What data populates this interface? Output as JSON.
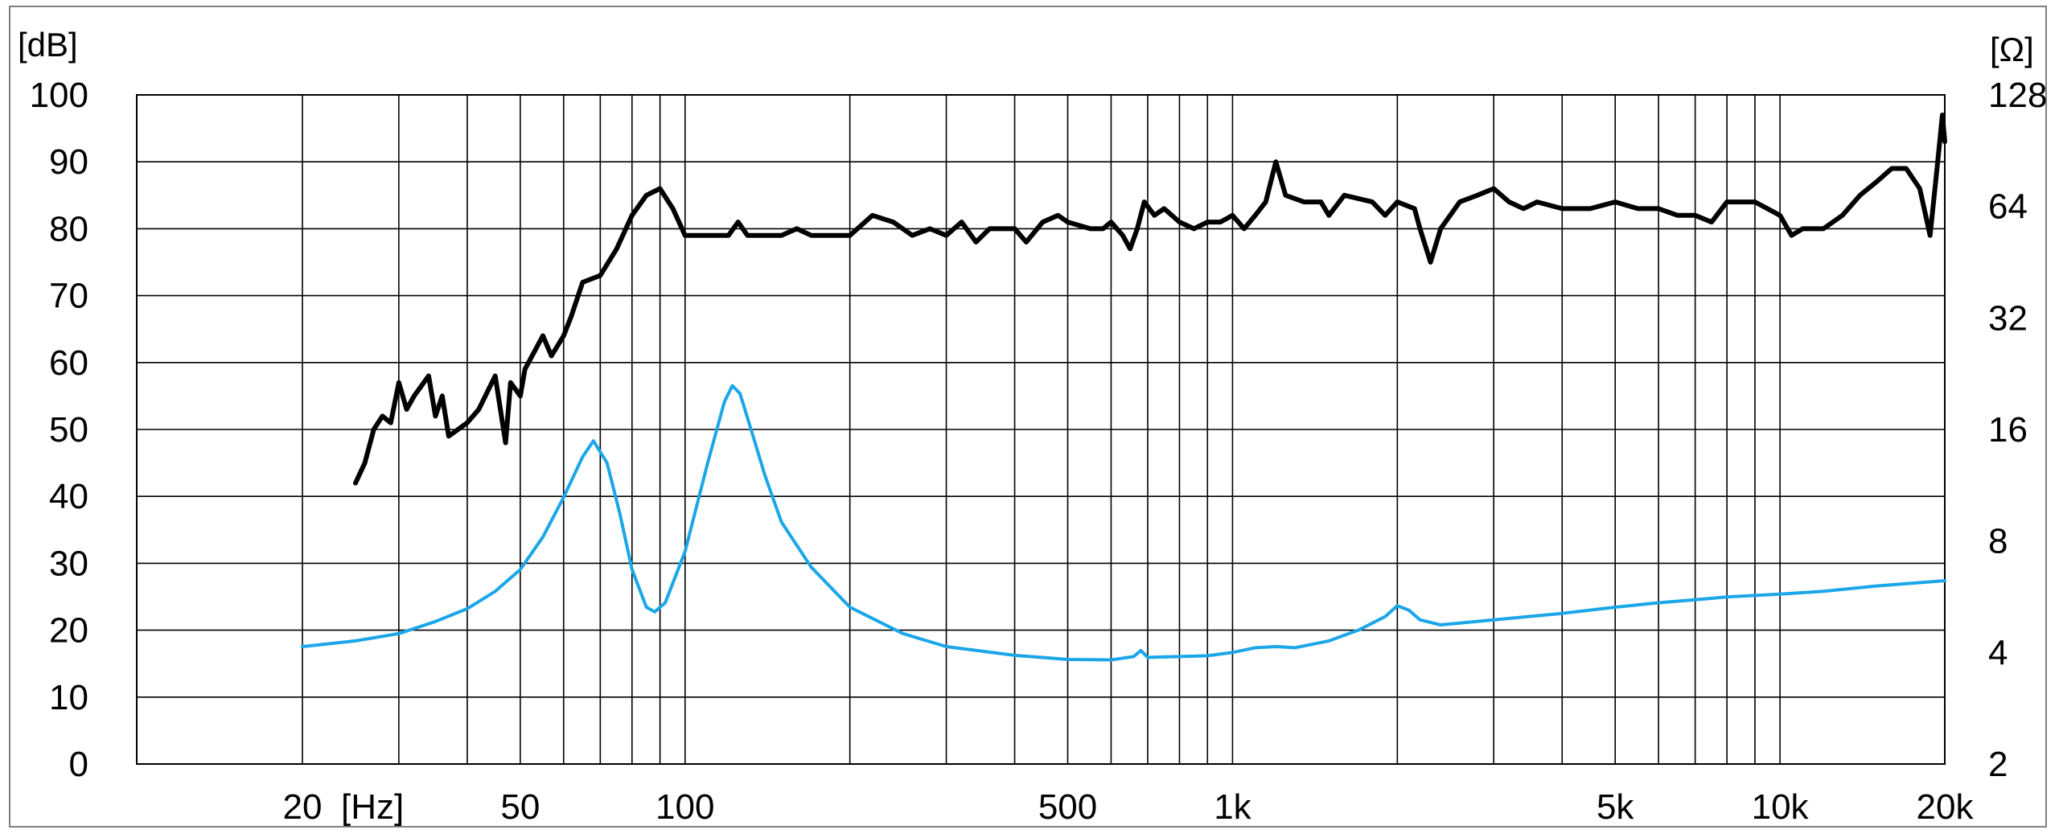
{
  "chart_data": {
    "type": "line",
    "title": "",
    "x_scale": "log",
    "x_unit": "[Hz]",
    "xlim": [
      10,
      20000
    ],
    "x_ticks": [
      {
        "value": 20,
        "label": "20"
      },
      {
        "value": 50,
        "label": "50"
      },
      {
        "value": 100,
        "label": "100"
      },
      {
        "value": 500,
        "label": "500"
      },
      {
        "value": 1000,
        "label": "1k"
      },
      {
        "value": 5000,
        "label": "5k"
      },
      {
        "value": 10000,
        "label": "10k"
      },
      {
        "value": 20000,
        "label": "20k"
      }
    ],
    "x_gridlines": [
      20,
      30,
      40,
      50,
      60,
      70,
      80,
      90,
      100,
      200,
      300,
      400,
      500,
      600,
      700,
      800,
      900,
      1000,
      2000,
      3000,
      4000,
      5000,
      6000,
      7000,
      8000,
      9000,
      10000,
      20000
    ],
    "y_left": {
      "unit": "[dB]",
      "range": [
        0,
        100
      ],
      "ticks": [
        0,
        10,
        20,
        30,
        40,
        50,
        60,
        70,
        80,
        90,
        100
      ]
    },
    "y_right": {
      "unit": "[Ω]",
      "scale": "log2",
      "range": [
        2,
        128
      ],
      "ticks": [
        2,
        4,
        8,
        16,
        32,
        64,
        128
      ]
    },
    "grid": true,
    "legend": "none",
    "series": [
      {
        "axis": "left",
        "color": "#000000",
        "points": [
          [
            25,
            42
          ],
          [
            26,
            45
          ],
          [
            27,
            50
          ],
          [
            28,
            52
          ],
          [
            29,
            51
          ],
          [
            30,
            57
          ],
          [
            31,
            53
          ],
          [
            32,
            55
          ],
          [
            34,
            58
          ],
          [
            35,
            52
          ],
          [
            36,
            55
          ],
          [
            37,
            49
          ],
          [
            40,
            51
          ],
          [
            42,
            53
          ],
          [
            45,
            58
          ],
          [
            47,
            48
          ],
          [
            48,
            57
          ],
          [
            50,
            55
          ],
          [
            51,
            59
          ],
          [
            55,
            64
          ],
          [
            57,
            61
          ],
          [
            60,
            64
          ],
          [
            62,
            67
          ],
          [
            65,
            72
          ],
          [
            70,
            73
          ],
          [
            75,
            77
          ],
          [
            80,
            82
          ],
          [
            85,
            85
          ],
          [
            90,
            86
          ],
          [
            95,
            83
          ],
          [
            100,
            79
          ],
          [
            110,
            79
          ],
          [
            120,
            79
          ],
          [
            125,
            81
          ],
          [
            130,
            79
          ],
          [
            150,
            79
          ],
          [
            160,
            80
          ],
          [
            170,
            79
          ],
          [
            180,
            79
          ],
          [
            200,
            79
          ],
          [
            220,
            82
          ],
          [
            240,
            81
          ],
          [
            260,
            79
          ],
          [
            280,
            80
          ],
          [
            300,
            79
          ],
          [
            320,
            81
          ],
          [
            340,
            78
          ],
          [
            360,
            80
          ],
          [
            400,
            80
          ],
          [
            420,
            78
          ],
          [
            450,
            81
          ],
          [
            480,
            82
          ],
          [
            500,
            81
          ],
          [
            550,
            80
          ],
          [
            580,
            80
          ],
          [
            600,
            81
          ],
          [
            630,
            79
          ],
          [
            650,
            77
          ],
          [
            670,
            80
          ],
          [
            690,
            84
          ],
          [
            720,
            82
          ],
          [
            750,
            83
          ],
          [
            800,
            81
          ],
          [
            850,
            80
          ],
          [
            900,
            81
          ],
          [
            950,
            81
          ],
          [
            1000,
            82
          ],
          [
            1050,
            80
          ],
          [
            1100,
            82
          ],
          [
            1150,
            84
          ],
          [
            1200,
            90
          ],
          [
            1250,
            85
          ],
          [
            1350,
            84
          ],
          [
            1450,
            84
          ],
          [
            1500,
            82
          ],
          [
            1600,
            85
          ],
          [
            1800,
            84
          ],
          [
            1900,
            82
          ],
          [
            2000,
            84
          ],
          [
            2150,
            83
          ],
          [
            2200,
            80
          ],
          [
            2300,
            75
          ],
          [
            2400,
            80
          ],
          [
            2600,
            84
          ],
          [
            2800,
            85
          ],
          [
            3000,
            86
          ],
          [
            3200,
            84
          ],
          [
            3400,
            83
          ],
          [
            3600,
            84
          ],
          [
            4000,
            83
          ],
          [
            4500,
            83
          ],
          [
            5000,
            84
          ],
          [
            5500,
            83
          ],
          [
            6000,
            83
          ],
          [
            6500,
            82
          ],
          [
            7000,
            82
          ],
          [
            7500,
            81
          ],
          [
            8000,
            84
          ],
          [
            8500,
            84
          ],
          [
            9000,
            84
          ],
          [
            10000,
            82
          ],
          [
            10500,
            79
          ],
          [
            11000,
            80
          ],
          [
            12000,
            80
          ],
          [
            13000,
            82
          ],
          [
            14000,
            85
          ],
          [
            15000,
            87
          ],
          [
            16000,
            89
          ],
          [
            17000,
            89
          ],
          [
            18000,
            86
          ],
          [
            18800,
            79
          ],
          [
            19300,
            88
          ],
          [
            19800,
            97
          ],
          [
            20000,
            93
          ]
        ]
      },
      {
        "axis": "right",
        "color": "#1aa6e8",
        "points": [
          [
            20,
            4.15
          ],
          [
            25,
            4.3
          ],
          [
            30,
            4.5
          ],
          [
            35,
            4.85
          ],
          [
            40,
            5.25
          ],
          [
            45,
            5.85
          ],
          [
            50,
            6.7
          ],
          [
            55,
            8.2
          ],
          [
            60,
            10.5
          ],
          [
            65,
            13.5
          ],
          [
            68,
            14.9
          ],
          [
            72,
            13.0
          ],
          [
            76,
            9.5
          ],
          [
            80,
            6.7
          ],
          [
            85,
            5.3
          ],
          [
            88,
            5.15
          ],
          [
            92,
            5.45
          ],
          [
            100,
            7.5
          ],
          [
            110,
            13.0
          ],
          [
            118,
            19.0
          ],
          [
            122,
            21.0
          ],
          [
            126,
            20.0
          ],
          [
            132,
            16.0
          ],
          [
            140,
            12.0
          ],
          [
            150,
            9.0
          ],
          [
            170,
            6.8
          ],
          [
            200,
            5.3
          ],
          [
            250,
            4.5
          ],
          [
            300,
            4.15
          ],
          [
            400,
            3.93
          ],
          [
            500,
            3.83
          ],
          [
            600,
            3.82
          ],
          [
            660,
            3.9
          ],
          [
            680,
            4.05
          ],
          [
            700,
            3.88
          ],
          [
            800,
            3.9
          ],
          [
            900,
            3.92
          ],
          [
            1000,
            4.0
          ],
          [
            1100,
            4.12
          ],
          [
            1200,
            4.15
          ],
          [
            1300,
            4.12
          ],
          [
            1500,
            4.3
          ],
          [
            1700,
            4.6
          ],
          [
            1900,
            5.0
          ],
          [
            2000,
            5.35
          ],
          [
            2100,
            5.2
          ],
          [
            2200,
            4.9
          ],
          [
            2400,
            4.75
          ],
          [
            3000,
            4.9
          ],
          [
            4000,
            5.1
          ],
          [
            5000,
            5.3
          ],
          [
            6000,
            5.45
          ],
          [
            7000,
            5.55
          ],
          [
            8000,
            5.65
          ],
          [
            10000,
            5.75
          ],
          [
            12000,
            5.85
          ],
          [
            15000,
            6.05
          ],
          [
            20000,
            6.25
          ]
        ]
      }
    ]
  }
}
